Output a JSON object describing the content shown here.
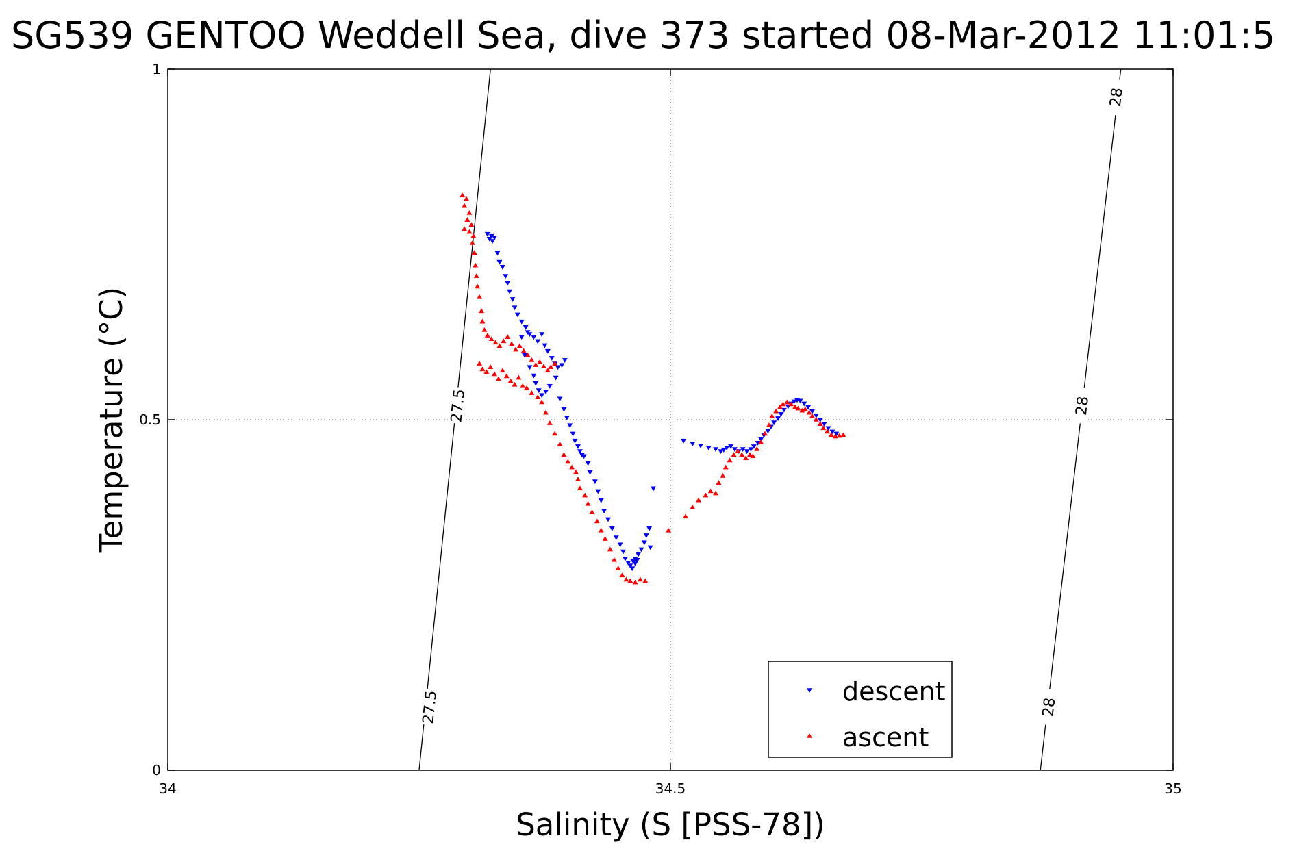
{
  "chart_data": {
    "type": "scatter",
    "title": "SG539 GENTOO Weddell Sea, dive 373 started 08-Mar-2012 11:01:5",
    "xlabel": "Salinity (S [PSS-78])",
    "ylabel": "Temperature (°C)",
    "xlim": [
      34,
      35
    ],
    "ylim": [
      0,
      1
    ],
    "xticks": [
      "34",
      "34.5",
      "35"
    ],
    "yticks": [
      "0",
      "0.5",
      "1"
    ],
    "grid": true,
    "legend_position": "bottom-center",
    "contours": [
      {
        "level": "27.5",
        "points": [
          [
            34.25,
            0.0
          ],
          [
            34.321,
            1.0
          ]
        ],
        "labels": [
          {
            "text": "27.5",
            "x": 34.26,
            "y": 0.09
          },
          {
            "text": "27.5",
            "x": 34.288,
            "y": 0.52
          }
        ]
      },
      {
        "level": "28",
        "points": [
          [
            34.868,
            0.0
          ],
          [
            34.948,
            1.0
          ]
        ],
        "labels": [
          {
            "text": "28",
            "x": 34.876,
            "y": 0.09
          },
          {
            "text": "28",
            "x": 34.909,
            "y": 0.52
          },
          {
            "text": "28",
            "x": 34.943,
            "y": 0.96
          }
        ]
      }
    ],
    "series": [
      {
        "name": "descent",
        "color": "#0000ff",
        "marker": "triangle-down",
        "points": [
          [
            34.318,
            0.765
          ],
          [
            34.322,
            0.762
          ],
          [
            34.325,
            0.76
          ],
          [
            34.32,
            0.758
          ],
          [
            34.323,
            0.755
          ],
          [
            34.328,
            0.738
          ],
          [
            34.33,
            0.725
          ],
          [
            34.333,
            0.718
          ],
          [
            34.336,
            0.705
          ],
          [
            34.338,
            0.695
          ],
          [
            34.34,
            0.683
          ],
          [
            34.343,
            0.672
          ],
          [
            34.345,
            0.66
          ],
          [
            34.348,
            0.65
          ],
          [
            34.352,
            0.64
          ],
          [
            34.356,
            0.632
          ],
          [
            34.358,
            0.625
          ],
          [
            34.352,
            0.618
          ],
          [
            34.36,
            0.622
          ],
          [
            34.364,
            0.618
          ],
          [
            34.368,
            0.612
          ],
          [
            34.372,
            0.622
          ],
          [
            34.375,
            0.606
          ],
          [
            34.378,
            0.598
          ],
          [
            34.382,
            0.588
          ],
          [
            34.385,
            0.58
          ],
          [
            34.388,
            0.575
          ],
          [
            34.392,
            0.578
          ],
          [
            34.395,
            0.585
          ],
          [
            34.355,
            0.592
          ],
          [
            34.36,
            0.575
          ],
          [
            34.364,
            0.563
          ],
          [
            34.366,
            0.552
          ],
          [
            34.369,
            0.542
          ],
          [
            34.372,
            0.535
          ],
          [
            34.376,
            0.54
          ],
          [
            34.38,
            0.548
          ],
          [
            34.386,
            0.56
          ],
          [
            34.39,
            0.53
          ],
          [
            34.394,
            0.515
          ],
          [
            34.397,
            0.503
          ],
          [
            34.4,
            0.492
          ],
          [
            34.403,
            0.48
          ],
          [
            34.405,
            0.47
          ],
          [
            34.408,
            0.462
          ],
          [
            34.41,
            0.455
          ],
          [
            34.412,
            0.45
          ],
          [
            34.414,
            0.448
          ],
          [
            34.418,
            0.438
          ],
          [
            34.42,
            0.425
          ],
          [
            34.425,
            0.412
          ],
          [
            34.428,
            0.398
          ],
          [
            34.431,
            0.385
          ],
          [
            34.434,
            0.37
          ],
          [
            34.438,
            0.358
          ],
          [
            34.442,
            0.345
          ],
          [
            34.446,
            0.332
          ],
          [
            34.45,
            0.322
          ],
          [
            34.453,
            0.312
          ],
          [
            34.455,
            0.302
          ],
          [
            34.458,
            0.296
          ],
          [
            34.46,
            0.292
          ],
          [
            34.463,
            0.298
          ],
          [
            34.465,
            0.302
          ],
          [
            34.467,
            0.3
          ],
          [
            34.462,
            0.288
          ],
          [
            34.465,
            0.295
          ],
          [
            34.468,
            0.308
          ],
          [
            34.471,
            0.315
          ],
          [
            34.474,
            0.325
          ],
          [
            34.476,
            0.335
          ],
          [
            34.479,
            0.345
          ],
          [
            34.483,
            0.402
          ],
          [
            34.48,
            0.318
          ],
          [
            34.513,
            0.47
          ],
          [
            34.522,
            0.466
          ],
          [
            34.53,
            0.463
          ],
          [
            34.538,
            0.46
          ],
          [
            34.545,
            0.458
          ],
          [
            34.55,
            0.455
          ],
          [
            34.553,
            0.457
          ],
          [
            34.556,
            0.46
          ],
          [
            34.56,
            0.462
          ],
          [
            34.564,
            0.458
          ],
          [
            34.568,
            0.455
          ],
          [
            34.572,
            0.458
          ],
          [
            34.576,
            0.455
          ],
          [
            34.58,
            0.458
          ],
          [
            34.583,
            0.462
          ],
          [
            34.587,
            0.467
          ],
          [
            34.59,
            0.472
          ],
          [
            34.593,
            0.478
          ],
          [
            34.597,
            0.484
          ],
          [
            34.6,
            0.49
          ],
          [
            34.603,
            0.496
          ],
          [
            34.607,
            0.502
          ],
          [
            34.61,
            0.508
          ],
          [
            34.613,
            0.514
          ],
          [
            34.617,
            0.519
          ],
          [
            34.62,
            0.523
          ],
          [
            34.623,
            0.526
          ],
          [
            34.626,
            0.528
          ],
          [
            34.629,
            0.527
          ],
          [
            34.633,
            0.523
          ],
          [
            34.637,
            0.518
          ],
          [
            34.641,
            0.512
          ],
          [
            34.645,
            0.506
          ],
          [
            34.649,
            0.5
          ],
          [
            34.653,
            0.494
          ],
          [
            34.657,
            0.488
          ],
          [
            34.661,
            0.483
          ],
          [
            34.665,
            0.48
          ]
        ]
      },
      {
        "name": "ascent",
        "color": "#ff0000",
        "marker": "triangle-up",
        "points": [
          [
            34.293,
            0.82
          ],
          [
            34.297,
            0.815
          ],
          [
            34.295,
            0.805
          ],
          [
            34.3,
            0.795
          ],
          [
            34.298,
            0.785
          ],
          [
            34.302,
            0.778
          ],
          [
            34.295,
            0.772
          ],
          [
            34.3,
            0.768
          ],
          [
            34.304,
            0.762
          ],
          [
            34.303,
            0.752
          ],
          [
            34.305,
            0.738
          ],
          [
            34.306,
            0.72
          ],
          [
            34.307,
            0.705
          ],
          [
            34.308,
            0.69
          ],
          [
            34.31,
            0.675
          ],
          [
            34.312,
            0.655
          ],
          [
            34.313,
            0.64
          ],
          [
            34.315,
            0.628
          ],
          [
            34.318,
            0.62
          ],
          [
            34.322,
            0.615
          ],
          [
            34.326,
            0.61
          ],
          [
            34.33,
            0.605
          ],
          [
            34.334,
            0.612
          ],
          [
            34.338,
            0.618
          ],
          [
            34.342,
            0.608
          ],
          [
            34.346,
            0.6
          ],
          [
            34.35,
            0.605
          ],
          [
            34.354,
            0.598
          ],
          [
            34.358,
            0.592
          ],
          [
            34.362,
            0.585
          ],
          [
            34.366,
            0.578
          ],
          [
            34.37,
            0.582
          ],
          [
            34.374,
            0.576
          ],
          [
            34.378,
            0.57
          ],
          [
            34.381,
            0.575
          ],
          [
            34.385,
            0.58
          ],
          [
            34.31,
            0.58
          ],
          [
            34.313,
            0.572
          ],
          [
            34.317,
            0.568
          ],
          [
            34.321,
            0.575
          ],
          [
            34.325,
            0.565
          ],
          [
            34.329,
            0.558
          ],
          [
            34.333,
            0.57
          ],
          [
            34.337,
            0.562
          ],
          [
            34.341,
            0.555
          ],
          [
            34.345,
            0.55
          ],
          [
            34.349,
            0.56
          ],
          [
            34.353,
            0.548
          ],
          [
            34.357,
            0.545
          ],
          [
            34.362,
            0.538
          ],
          [
            34.368,
            0.532
          ],
          [
            34.372,
            0.525
          ],
          [
            34.376,
            0.51
          ],
          [
            34.38,
            0.495
          ],
          [
            34.385,
            0.48
          ],
          [
            34.39,
            0.465
          ],
          [
            34.394,
            0.45
          ],
          [
            34.398,
            0.44
          ],
          [
            34.402,
            0.432
          ],
          [
            34.406,
            0.425
          ],
          [
            34.408,
            0.415
          ],
          [
            34.41,
            0.402
          ],
          [
            34.415,
            0.392
          ],
          [
            34.418,
            0.38
          ],
          [
            34.422,
            0.368
          ],
          [
            34.427,
            0.355
          ],
          [
            34.431,
            0.342
          ],
          [
            34.435,
            0.33
          ],
          [
            34.44,
            0.315
          ],
          [
            34.444,
            0.3
          ],
          [
            34.448,
            0.288
          ],
          [
            34.452,
            0.278
          ],
          [
            34.456,
            0.272
          ],
          [
            34.46,
            0.27
          ],
          [
            34.465,
            0.268
          ],
          [
            34.47,
            0.272
          ],
          [
            34.475,
            0.27
          ],
          [
            34.498,
            0.342
          ],
          [
            34.515,
            0.362
          ],
          [
            34.522,
            0.375
          ],
          [
            34.528,
            0.385
          ],
          [
            34.535,
            0.392
          ],
          [
            34.54,
            0.398
          ],
          [
            34.545,
            0.395
          ],
          [
            34.548,
            0.41
          ],
          [
            34.552,
            0.42
          ],
          [
            34.555,
            0.432
          ],
          [
            34.559,
            0.442
          ],
          [
            34.563,
            0.45
          ],
          [
            34.567,
            0.455
          ],
          [
            34.571,
            0.45
          ],
          [
            34.575,
            0.445
          ],
          [
            34.579,
            0.45
          ],
          [
            34.582,
            0.448
          ],
          [
            34.586,
            0.458
          ],
          [
            34.59,
            0.468
          ],
          [
            34.594,
            0.48
          ],
          [
            34.598,
            0.492
          ],
          [
            34.601,
            0.505
          ],
          [
            34.605,
            0.512
          ],
          [
            34.609,
            0.518
          ],
          [
            34.612,
            0.522
          ],
          [
            34.616,
            0.525
          ],
          [
            34.62,
            0.522
          ],
          [
            34.624,
            0.518
          ],
          [
            34.627,
            0.516
          ],
          [
            34.631,
            0.513
          ],
          [
            34.634,
            0.515
          ],
          [
            34.638,
            0.51
          ],
          [
            34.641,
            0.505
          ],
          [
            34.645,
            0.5
          ],
          [
            34.649,
            0.494
          ],
          [
            34.652,
            0.488
          ],
          [
            34.656,
            0.483
          ],
          [
            34.66,
            0.478
          ],
          [
            34.664,
            0.476
          ],
          [
            34.668,
            0.477
          ],
          [
            34.672,
            0.478
          ]
        ]
      }
    ]
  }
}
